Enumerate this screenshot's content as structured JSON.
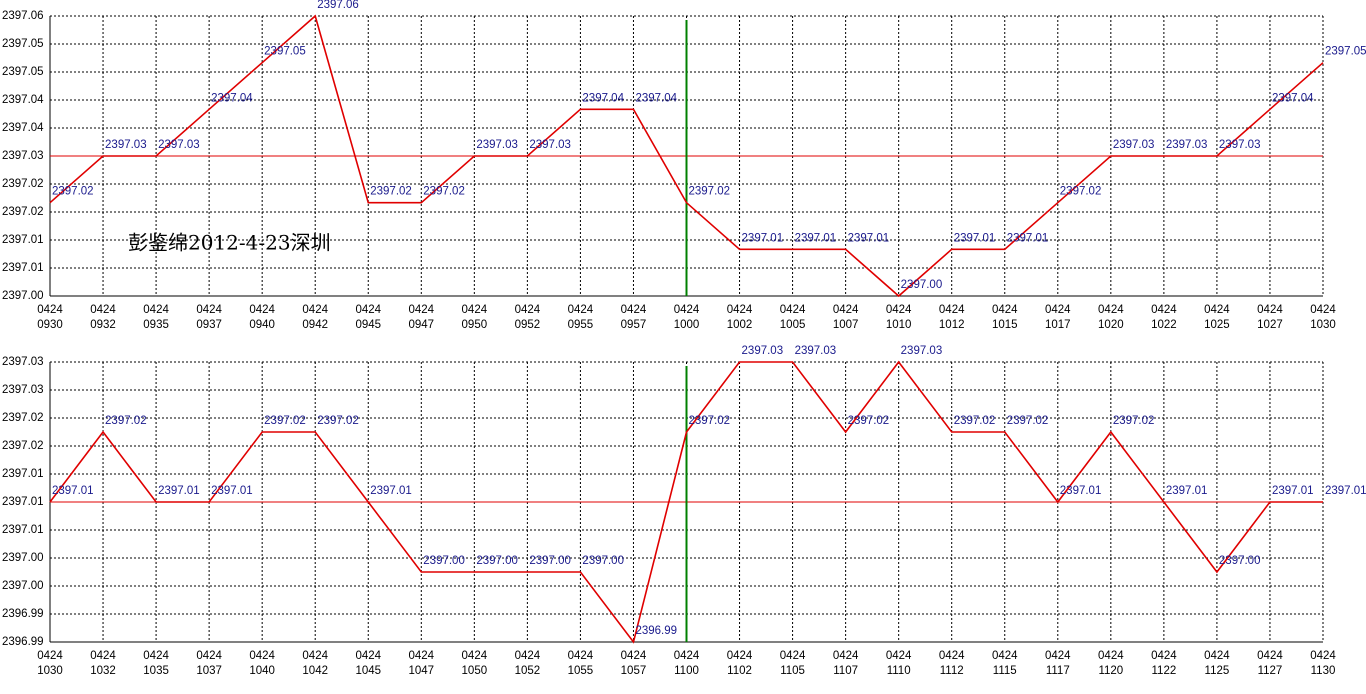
{
  "chart_data": [
    {
      "type": "line",
      "annotation": "彭鉴绵2012-4-23深圳",
      "categories": [
        [
          "0424",
          "0930"
        ],
        [
          "0424",
          "0932"
        ],
        [
          "0424",
          "0935"
        ],
        [
          "0424",
          "0937"
        ],
        [
          "0424",
          "0940"
        ],
        [
          "0424",
          "0942"
        ],
        [
          "0424",
          "0945"
        ],
        [
          "0424",
          "0947"
        ],
        [
          "0424",
          "0950"
        ],
        [
          "0424",
          "0952"
        ],
        [
          "0424",
          "0955"
        ],
        [
          "0424",
          "0957"
        ],
        [
          "0424",
          "1000"
        ],
        [
          "0424",
          "1002"
        ],
        [
          "0424",
          "1005"
        ],
        [
          "0424",
          "1007"
        ],
        [
          "0424",
          "1010"
        ],
        [
          "0424",
          "1012"
        ],
        [
          "0424",
          "1015"
        ],
        [
          "0424",
          "1017"
        ],
        [
          "0424",
          "1020"
        ],
        [
          "0424",
          "1022"
        ],
        [
          "0424",
          "1025"
        ],
        [
          "0424",
          "1027"
        ],
        [
          "0424",
          "1030"
        ]
      ],
      "series": [
        {
          "color": "#e00000",
          "values": [
            2397.02,
            2397.03,
            2397.03,
            2397.04,
            2397.05,
            2397.06,
            2397.02,
            2397.02,
            2397.03,
            2397.03,
            2397.04,
            2397.04,
            2397.02,
            2397.01,
            2397.01,
            2397.01,
            2397.0,
            2397.01,
            2397.01,
            2397.02,
            2397.03,
            2397.03,
            2397.03,
            2397.04,
            2397.05
          ],
          "value_labels": [
            "2397.02",
            "2397.03",
            "2397.03",
            "2397.04",
            "2397.05",
            "2397.06",
            "2397.02",
            "2397.02",
            "2397.03",
            "2397.03",
            "2397.04",
            "2397.04",
            "2397.02",
            "2397.01",
            "2397.01",
            "2397.01",
            "2397.00",
            "2397.01",
            "2397.01",
            "2397.02",
            "2397.03",
            "2397.03",
            "2397.03",
            "2397.04",
            "2397.05"
          ]
        }
      ],
      "ylim": [
        2397.0,
        2397.06
      ],
      "yticks": [
        {
          "value": 2397.0,
          "label": "2397.00"
        },
        {
          "value": 2397.006,
          "label": "2397.01"
        },
        {
          "value": 2397.012,
          "label": "2397.01"
        },
        {
          "value": 2397.018,
          "label": "2397.02"
        },
        {
          "value": 2397.024,
          "label": "2397.02"
        },
        {
          "value": 2397.03,
          "label": "2397.03"
        },
        {
          "value": 2397.036,
          "label": "2397.04"
        },
        {
          "value": 2397.042,
          "label": "2397.04"
        },
        {
          "value": 2397.048,
          "label": "2397.05"
        },
        {
          "value": 2397.054,
          "label": "2397.05"
        },
        {
          "value": 2397.06,
          "label": "2397.06"
        }
      ],
      "reference_line": 2397.03,
      "reference_color": "#e00000",
      "marker_category": 12,
      "marker_color": "#008000",
      "grid": true
    },
    {
      "type": "line",
      "categories": [
        [
          "0424",
          "1030"
        ],
        [
          "0424",
          "1032"
        ],
        [
          "0424",
          "1035"
        ],
        [
          "0424",
          "1037"
        ],
        [
          "0424",
          "1040"
        ],
        [
          "0424",
          "1042"
        ],
        [
          "0424",
          "1045"
        ],
        [
          "0424",
          "1047"
        ],
        [
          "0424",
          "1050"
        ],
        [
          "0424",
          "1052"
        ],
        [
          "0424",
          "1055"
        ],
        [
          "0424",
          "1057"
        ],
        [
          "0424",
          "1100"
        ],
        [
          "0424",
          "1102"
        ],
        [
          "0424",
          "1105"
        ],
        [
          "0424",
          "1107"
        ],
        [
          "0424",
          "1110"
        ],
        [
          "0424",
          "1112"
        ],
        [
          "0424",
          "1115"
        ],
        [
          "0424",
          "1117"
        ],
        [
          "0424",
          "1120"
        ],
        [
          "0424",
          "1122"
        ],
        [
          "0424",
          "1125"
        ],
        [
          "0424",
          "1127"
        ],
        [
          "0424",
          "1130"
        ]
      ],
      "series": [
        {
          "color": "#e00000",
          "values": [
            2397.01,
            2397.02,
            2397.01,
            2397.01,
            2397.02,
            2397.02,
            2397.01,
            2397.0,
            2397.0,
            2397.0,
            2397.0,
            2396.99,
            2397.02,
            2397.03,
            2397.03,
            2397.02,
            2397.03,
            2397.02,
            2397.02,
            2397.01,
            2397.02,
            2397.01,
            2397.0,
            2397.01,
            2397.01
          ],
          "value_labels": [
            "2397.01",
            "2397.02",
            "2397.01",
            "2397.01",
            "2397.02",
            "2397.02",
            "2397.01",
            "2397.00",
            "2397.00",
            "2397.00",
            "2397.00",
            "2396.99",
            "2397.02",
            "2397.03",
            "2397.03",
            "2397.02",
            "2397.03",
            "2397.02",
            "2397.02",
            "2397.01",
            "2397.02",
            "2397.01",
            "2397.00",
            "2397.01",
            "2397.01"
          ]
        }
      ],
      "ylim": [
        2396.99,
        2397.03
      ],
      "yticks": [
        {
          "value": 2396.99,
          "label": "2396.99"
        },
        {
          "value": 2396.994,
          "label": "2396.99"
        },
        {
          "value": 2396.998,
          "label": "2397.00"
        },
        {
          "value": 2397.002,
          "label": "2397.00"
        },
        {
          "value": 2397.006,
          "label": "2397.01"
        },
        {
          "value": 2397.01,
          "label": "2397.01"
        },
        {
          "value": 2397.014,
          "label": "2397.01"
        },
        {
          "value": 2397.018,
          "label": "2397.02"
        },
        {
          "value": 2397.022,
          "label": "2397.02"
        },
        {
          "value": 2397.026,
          "label": "2397.03"
        },
        {
          "value": 2397.03,
          "label": "2397.03"
        }
      ],
      "reference_line": 2397.01,
      "reference_color": "#e00000",
      "marker_category": 12,
      "marker_color": "#008000",
      "grid": true
    }
  ]
}
